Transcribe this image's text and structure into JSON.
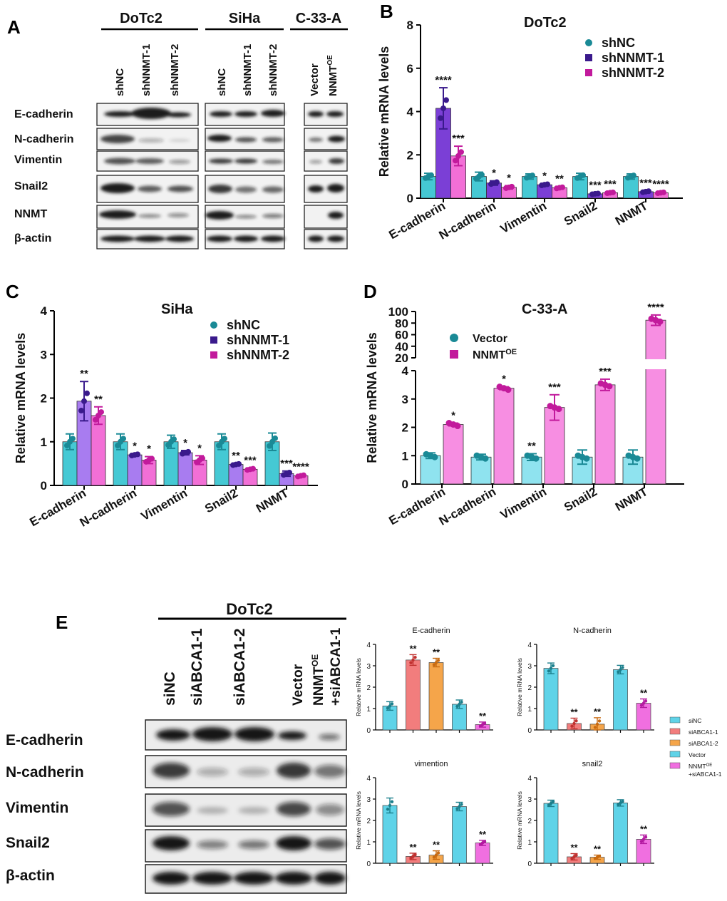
{
  "panels": {
    "A": "A",
    "B": "B",
    "C": "C",
    "D": "D",
    "E": "E"
  },
  "panel_a": {
    "cell_lines": [
      "DoTc2",
      "SiHa",
      "C-33-A"
    ],
    "lanes": [
      [
        "shNC",
        "shNNMT-1",
        "shNNMT-2"
      ],
      [
        "shNC",
        "shNNMT-1",
        "shNNMT-2"
      ],
      [
        "Vector",
        "NNMT",
        "OE"
      ]
    ],
    "proteins": [
      "E-cadherin",
      "N-cadherin",
      "Vimentin",
      "Snail2",
      "NNMT",
      "β-actin"
    ]
  },
  "panel_e_blot": {
    "cell_line": "DoTc2",
    "lanes": [
      "siNC",
      "siABCA1-1",
      "siABCA1-2",
      "Vector",
      "NNMT",
      "OE",
      "+siABCA1-1"
    ],
    "proteins": [
      "E-cadherin",
      "N-cadherin",
      "Vimentin",
      "Snail2",
      "β-actin"
    ]
  },
  "chart_data": [
    {
      "id": "B",
      "type": "bar",
      "title": "DoTc2",
      "ylabel": "Relative mRNA levels",
      "ylim": [
        0,
        8
      ],
      "yticks": [
        "0",
        "2",
        "4",
        "6",
        "8"
      ],
      "categories": [
        "E-cadherin",
        "N-cadherin",
        "Vimentin",
        "Snail2",
        "NNMT"
      ],
      "series": [
        {
          "name": "shNC",
          "color": "#45c9d4",
          "marker": "#1a8a96",
          "values": [
            1.0,
            1.0,
            1.0,
            1.0,
            1.0
          ],
          "errors": [
            0.15,
            0.2,
            0.12,
            0.15,
            0.12
          ],
          "sig": [
            "",
            "",
            "",
            "",
            ""
          ]
        },
        {
          "name": "shNNMT-1",
          "color": "#7b3fd6",
          "marker": "#3a1a8c",
          "values": [
            4.15,
            0.7,
            0.62,
            0.2,
            0.3
          ],
          "errors": [
            0.95,
            0.1,
            0.06,
            0.04,
            0.05
          ],
          "sig": [
            "****",
            "*",
            "*",
            "***",
            "***"
          ]
        },
        {
          "name": "shNNMT-2",
          "color": "#f26fd6",
          "marker": "#c21a9c",
          "values": [
            1.95,
            0.5,
            0.48,
            0.25,
            0.25
          ],
          "errors": [
            0.45,
            0.08,
            0.06,
            0.04,
            0.04
          ],
          "sig": [
            "***",
            "*",
            "**",
            "***",
            "****"
          ]
        }
      ]
    },
    {
      "id": "C",
      "type": "bar",
      "title": "SiHa",
      "ylabel": "Relative mRNA levels",
      "ylim": [
        0,
        4
      ],
      "yticks": [
        "0",
        "1",
        "2",
        "3",
        "4"
      ],
      "categories": [
        "E-cadherin",
        "N-cadherin",
        "Vimentin",
        "Snail2",
        "NNMT"
      ],
      "series": [
        {
          "name": "shNC",
          "color": "#45c9d4",
          "marker": "#1a8a96",
          "values": [
            1.0,
            1.0,
            1.0,
            1.0,
            1.0
          ],
          "errors": [
            0.18,
            0.18,
            0.15,
            0.18,
            0.2
          ],
          "sig": [
            "",
            "",
            "",
            "",
            ""
          ]
        },
        {
          "name": "shNNMT-1",
          "color": "#a87cf0",
          "marker": "#3a1a8c",
          "values": [
            1.93,
            0.7,
            0.75,
            0.48,
            0.27
          ],
          "errors": [
            0.45,
            0.03,
            0.05,
            0.03,
            0.06
          ],
          "sig": [
            "**",
            "*",
            "*",
            "**",
            "***"
          ]
        },
        {
          "name": "shNNMT-2",
          "color": "#f26fd6",
          "marker": "#c21a9c",
          "values": [
            1.6,
            0.58,
            0.58,
            0.37,
            0.22
          ],
          "errors": [
            0.2,
            0.08,
            0.1,
            0.03,
            0.03
          ],
          "sig": [
            "**",
            "*",
            "*",
            "***",
            "****"
          ]
        }
      ]
    },
    {
      "id": "D",
      "type": "bar",
      "title": "C-33-A",
      "ylabel": "Relative mRNA levels",
      "ylim": [
        0,
        100
      ],
      "axis_break": [
        4,
        15
      ],
      "yticks_low": [
        "0",
        "1",
        "2",
        "3",
        "4"
      ],
      "yticks_high": [
        "20",
        "40",
        "60",
        "80",
        "100"
      ],
      "categories": [
        "E-cadherin",
        "N-cadherin",
        "Vimentin",
        "Snail2",
        "NNMT"
      ],
      "series": [
        {
          "name": "Vector",
          "color": "#8fe3ef",
          "marker": "#1a8a96",
          "values": [
            1.0,
            0.95,
            0.95,
            0.95,
            0.95
          ],
          "errors": [
            0.1,
            0.1,
            0.12,
            0.25,
            0.25
          ],
          "sig": [
            "",
            "",
            "**",
            "",
            ""
          ]
        },
        {
          "name": "NNMT",
          "sup": "OE",
          "color": "#f78ee2",
          "marker": "#c21a9c",
          "values": [
            2.1,
            3.38,
            2.7,
            3.5,
            85
          ],
          "errors": [
            0.05,
            0.05,
            0.45,
            0.2,
            9
          ],
          "sig": [
            "*",
            "*",
            "***",
            "***",
            "****"
          ]
        }
      ]
    },
    {
      "id": "E-legend",
      "type": "legend",
      "entries": [
        {
          "name": "siNC",
          "color": "#5fd3e8"
        },
        {
          "name": "siABCA1-1",
          "color": "#f27d7d"
        },
        {
          "name": "siABCA1-2",
          "color": "#f5a54a"
        },
        {
          "name": "Vector",
          "color": "#5fd3e8"
        },
        {
          "name": "NNMT",
          "sup": "OE",
          "line2": "+siABCA1-1",
          "color": "#f06fe0"
        }
      ]
    },
    {
      "id": "E-ecad",
      "type": "bar",
      "title": "E-cadherin",
      "ylabel": "Relative mRNA levels",
      "ylim": [
        0,
        4
      ],
      "yticks": [
        "0",
        "1",
        "2",
        "3",
        "4"
      ],
      "values": [
        1.12,
        3.27,
        3.15,
        1.2,
        0.25
      ],
      "errors": [
        0.2,
        0.25,
        0.2,
        0.2,
        0.12
      ],
      "colors": [
        "#5fd3e8",
        "#f27d7d",
        "#f5a54a",
        "#5fd3e8",
        "#f06fe0"
      ],
      "sig": [
        "",
        "**",
        "**",
        "",
        "**"
      ]
    },
    {
      "id": "E-ncad",
      "type": "bar",
      "title": "N-cadherin",
      "ylabel": "Relative mRNA levels",
      "ylim": [
        0,
        4
      ],
      "yticks": [
        "0",
        "1",
        "2",
        "3",
        "4"
      ],
      "values": [
        2.88,
        0.3,
        0.27,
        2.82,
        1.25
      ],
      "errors": [
        0.25,
        0.25,
        0.3,
        0.2,
        0.2
      ],
      "colors": [
        "#5fd3e8",
        "#f27d7d",
        "#f5a54a",
        "#5fd3e8",
        "#f06fe0"
      ],
      "sig": [
        "",
        "**",
        "**",
        "",
        "**"
      ]
    },
    {
      "id": "E-vim",
      "type": "bar",
      "title": "vimention",
      "ylabel": "Relative mRNA levels",
      "ylim": [
        0,
        4
      ],
      "yticks": [
        "0",
        "1",
        "2",
        "3",
        "4"
      ],
      "values": [
        2.7,
        0.32,
        0.38,
        2.65,
        0.95
      ],
      "errors": [
        0.35,
        0.15,
        0.2,
        0.2,
        0.12
      ],
      "colors": [
        "#5fd3e8",
        "#f27d7d",
        "#f5a54a",
        "#5fd3e8",
        "#f06fe0"
      ],
      "sig": [
        "",
        "**",
        "**",
        "",
        "**"
      ]
    },
    {
      "id": "E-snail",
      "type": "bar",
      "title": "snail2",
      "ylabel": "Relative mRNA levels",
      "ylim": [
        0,
        4
      ],
      "yticks": [
        "0",
        "1",
        "2",
        "3",
        "4"
      ],
      "values": [
        2.8,
        0.3,
        0.28,
        2.82,
        1.12
      ],
      "errors": [
        0.15,
        0.15,
        0.1,
        0.15,
        0.2
      ],
      "colors": [
        "#5fd3e8",
        "#f27d7d",
        "#f5a54a",
        "#5fd3e8",
        "#f06fe0"
      ],
      "sig": [
        "",
        "**",
        "**",
        "",
        "**"
      ]
    }
  ]
}
